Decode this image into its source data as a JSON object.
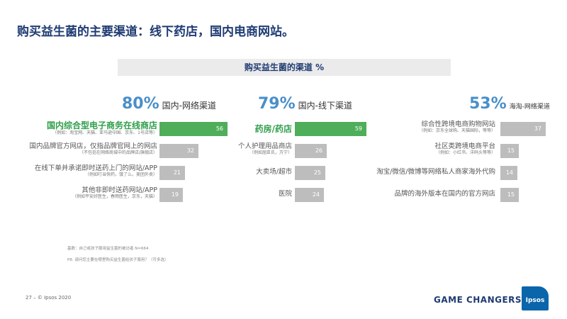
{
  "page_title": "购买益生菌的主要渠道：线下药店，国内电商网站。",
  "chart_data": {
    "type": "bar",
    "title": "购买益生菌的渠道 %",
    "groups": [
      {
        "pct": "80%",
        "name": "国内-网络渠道",
        "items": [
          {
            "label": "国内综合型电子商务在线商店",
            "sub": "（例如：淘宝网、天猫、亚马逊中国、京东、1号店等）",
            "value": 56,
            "highlight": true
          },
          {
            "label": "国内品牌官方网店，仅指品牌官网上的网店",
            "sub": "（不包括在网络商城中的品牌店/旗舰店）",
            "value": 32,
            "highlight": false
          },
          {
            "label": "在线下单并承诺即时送药上门的网站/APP",
            "sub": "（例如叮当快药，饿了么，美团外卖）",
            "value": 21,
            "highlight": false
          },
          {
            "label": "其他非即时送药网站/APP",
            "sub": "（例如平安好医生，春雨医生，京东，天猫）",
            "value": 19,
            "highlight": false
          }
        ]
      },
      {
        "pct": "79%",
        "name": "国内-线下渠道",
        "items": [
          {
            "label": "药房/药店",
            "sub": "",
            "value": 59,
            "highlight": true
          },
          {
            "label": "个人护理用品商店",
            "sub": "（例如屈臣氏，万宁）",
            "value": 26,
            "highlight": false
          },
          {
            "label": "大卖场/超市",
            "sub": "",
            "value": 25,
            "highlight": false
          },
          {
            "label": "医院",
            "sub": "",
            "value": 24,
            "highlight": false
          }
        ]
      },
      {
        "pct": "53%",
        "name": "海淘-网络渠道",
        "items": [
          {
            "label": "综合性跨境电商购物网站",
            "sub": "（例如：京东全球购、天猫国际，等等）",
            "value": 37,
            "highlight": false
          },
          {
            "label": "社区类跨境电商平台",
            "sub": "（例如：小红书、洋码头等等）",
            "value": 15,
            "highlight": false
          },
          {
            "label": "淘宝/微信/微博等网络私人商家海外代购",
            "sub": "",
            "value": 14,
            "highlight": false
          },
          {
            "label": "品牌的海外版本在国内的官方网店",
            "sub": "",
            "value": 15,
            "highlight": false
          }
        ]
      }
    ]
  },
  "notes": {
    "base": "基数：自己或孩子服用益生菌的被访者 N=664",
    "question": "P8. 请问您主要在哪里购买益生菌给孩子服用？（可多选）"
  },
  "footer": {
    "page": "27 –  © Ipsos 2020",
    "tagline": "GAME CHANGERS",
    "logo": "Ipsos"
  },
  "colors": {
    "title": "#1f3b73",
    "highlight_bar": "#4fae5a",
    "bar": "#bdbdbd",
    "percent": "#4a8fc9",
    "highlight_text": "#2e9e4a",
    "logo": "#0a65ab"
  }
}
